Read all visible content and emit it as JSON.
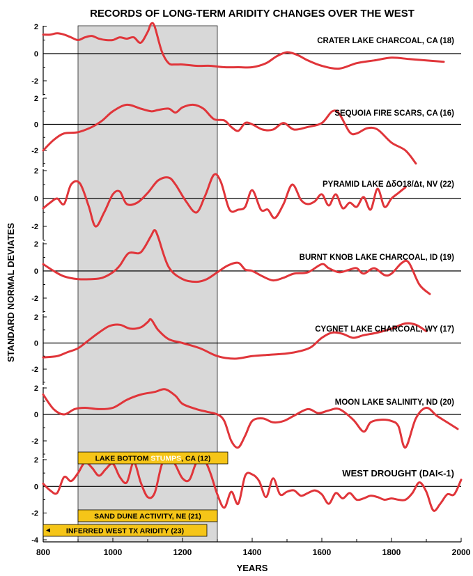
{
  "chart_data": {
    "type": "line",
    "title": "RECORDS OF LONG-TERM ARIDITY CHANGES OVER THE WEST",
    "xlabel": "YEARS",
    "ylabel": "STANDARD NORMAL DEVIATES",
    "xlim": [
      800,
      2000
    ],
    "x_ticks": [
      800,
      1000,
      1200,
      1400,
      1600,
      1800,
      2000
    ],
    "highlight_period": [
      900,
      1300
    ],
    "line_color": "#e0353a",
    "shade_color": "#d8d8d8",
    "bar_color": "#f5c518",
    "panels": [
      {
        "name": "CRATER LAKE CHARCOAL, CA (18)",
        "ylim": [
          -3,
          3
        ],
        "y_ticks": [
          2,
          0,
          -2
        ],
        "tick_labels": [
          "2",
          "0",
          "-2"
        ],
        "x": [
          800,
          820,
          840,
          860,
          880,
          900,
          920,
          940,
          960,
          980,
          1000,
          1020,
          1040,
          1060,
          1080,
          1100,
          1110,
          1120,
          1140,
          1160,
          1180,
          1200,
          1240,
          1280,
          1320,
          1360,
          1400,
          1440,
          1470,
          1500,
          1530,
          1560,
          1600,
          1650,
          1700,
          1750,
          1800,
          1850,
          1900,
          1950
        ],
        "y": [
          1.4,
          1.4,
          1.5,
          1.4,
          1.2,
          1.0,
          1.2,
          1.3,
          1.1,
          1.0,
          1.0,
          1.2,
          1.1,
          1.2,
          0.8,
          1.6,
          2.2,
          2.0,
          0.2,
          -0.7,
          -0.8,
          -0.8,
          -0.9,
          -0.9,
          -1.0,
          -1.0,
          -1.0,
          -0.7,
          -0.2,
          0.1,
          -0.1,
          -0.5,
          -0.9,
          -1.1,
          -0.7,
          -0.5,
          -0.3,
          -0.4,
          -0.5,
          -0.6
        ]
      },
      {
        "name": "SEQUOIA FIRE SCARS, CA (16)",
        "ylim": [
          -3,
          3
        ],
        "y_ticks": [
          2,
          0,
          -2
        ],
        "tick_labels": [
          "2",
          "0",
          "-2"
        ],
        "x": [
          800,
          830,
          860,
          900,
          940,
          970,
          1000,
          1040,
          1080,
          1110,
          1130,
          1160,
          1180,
          1200,
          1230,
          1260,
          1290,
          1320,
          1340,
          1360,
          1380,
          1400,
          1430,
          1460,
          1490,
          1520,
          1560,
          1600,
          1630,
          1650,
          1680,
          1700,
          1730,
          1760,
          1800,
          1840,
          1870
        ],
        "y": [
          -2.0,
          -1.2,
          -0.7,
          -0.6,
          -0.2,
          0.3,
          1.0,
          1.5,
          1.2,
          1.0,
          1.1,
          1.2,
          0.9,
          1.3,
          1.5,
          1.2,
          0.4,
          0.3,
          -0.2,
          -0.5,
          0.1,
          0.0,
          -0.4,
          -0.4,
          0.1,
          -0.4,
          -0.2,
          0.1,
          1.0,
          0.8,
          -0.6,
          -0.7,
          -0.3,
          -0.4,
          -1.4,
          -2.0,
          -3.0
        ]
      },
      {
        "name": "PYRAMID LAKE ΔδO18/Δt, NV (22)",
        "ylim": [
          -3,
          3
        ],
        "y_ticks": [
          2,
          0,
          -2
        ],
        "tick_labels": [
          "2",
          "0",
          "-2"
        ],
        "x": [
          800,
          820,
          840,
          860,
          880,
          905,
          930,
          950,
          975,
          1000,
          1020,
          1040,
          1070,
          1100,
          1130,
          1160,
          1180,
          1210,
          1240,
          1265,
          1290,
          1310,
          1335,
          1360,
          1380,
          1400,
          1425,
          1445,
          1465,
          1490,
          1515,
          1540,
          1560,
          1580,
          1600,
          1620,
          1640,
          1660,
          1680,
          1700,
          1720,
          1740,
          1760,
          1780,
          1800,
          1820,
          1840
        ],
        "y": [
          -0.7,
          -0.3,
          0.0,
          -0.4,
          1.0,
          1.1,
          -0.5,
          -2.0,
          -1.0,
          0.3,
          0.5,
          -0.4,
          -0.3,
          0.4,
          1.3,
          1.5,
          1.0,
          -0.2,
          -1.0,
          0.2,
          1.7,
          1.2,
          -0.8,
          -0.8,
          -0.6,
          0.6,
          -0.8,
          -0.8,
          -1.4,
          -0.4,
          1.0,
          -0.1,
          -0.4,
          -0.2,
          0.3,
          -0.5,
          0.3,
          -0.7,
          -0.3,
          -0.6,
          0.1,
          -0.8,
          0.7,
          -0.6,
          0.0,
          0.4,
          0.8
        ]
      },
      {
        "name": "BURNT KNOB LAKE CHARCOAL, ID (19)",
        "ylim": [
          -3,
          3
        ],
        "y_ticks": [
          2,
          0,
          -2
        ],
        "tick_labels": [
          "2",
          "0",
          "-2"
        ],
        "x": [
          800,
          830,
          860,
          900,
          940,
          970,
          1000,
          1020,
          1045,
          1075,
          1090,
          1110,
          1120,
          1130,
          1160,
          1200,
          1240,
          1270,
          1300,
          1330,
          1360,
          1380,
          1400,
          1430,
          1460,
          1490,
          1520,
          1560,
          1600,
          1620,
          1650,
          1680,
          1700,
          1720,
          1750,
          1780,
          1800,
          1830,
          1850,
          1880,
          1910
        ],
        "y": [
          0.5,
          0.0,
          -0.4,
          -0.6,
          -0.6,
          -0.5,
          -0.1,
          0.4,
          1.3,
          1.3,
          1.7,
          2.6,
          3.0,
          2.5,
          0.3,
          -0.6,
          -0.8,
          -0.6,
          -0.1,
          0.4,
          0.6,
          0.1,
          0.0,
          -0.4,
          -0.7,
          -0.5,
          -0.2,
          -0.1,
          0.5,
          0.2,
          -0.1,
          0.1,
          0.2,
          -0.2,
          0.2,
          -0.3,
          -0.2,
          0.6,
          0.6,
          -1.0,
          -1.7
        ]
      },
      {
        "name": "CYGNET LAKE CHARCOAL, WY (17)",
        "ylim": [
          -3,
          3
        ],
        "y_ticks": [
          2,
          0,
          -2
        ],
        "tick_labels": [
          "2",
          "0",
          "-2"
        ],
        "x": [
          800,
          840,
          870,
          900,
          930,
          960,
          990,
          1020,
          1050,
          1080,
          1100,
          1110,
          1130,
          1160,
          1200,
          1250,
          1300,
          1350,
          1400,
          1450,
          1500,
          1540,
          1570,
          1600,
          1630,
          1660,
          1690,
          1720,
          1760,
          1800,
          1840,
          1870,
          1900
        ],
        "y": [
          -1.1,
          -1.0,
          -0.7,
          -0.4,
          0.2,
          0.8,
          1.3,
          1.4,
          1.1,
          1.2,
          1.6,
          1.8,
          1.0,
          0.3,
          0.0,
          -0.4,
          -1.0,
          -1.2,
          -1.0,
          -0.9,
          -0.8,
          -0.6,
          -0.3,
          0.4,
          0.8,
          0.7,
          0.4,
          0.6,
          0.8,
          1.1,
          1.5,
          1.4,
          0.9
        ]
      },
      {
        "name": "MOON LAKE SALINITY, ND (20)",
        "ylim": [
          -3,
          3
        ],
        "y_ticks": [
          2,
          0,
          -2
        ],
        "tick_labels": [
          "2",
          "0",
          "-2"
        ],
        "x": [
          800,
          830,
          860,
          890,
          920,
          960,
          1000,
          1040,
          1080,
          1120,
          1150,
          1180,
          1200,
          1240,
          1270,
          1300,
          1320,
          1340,
          1360,
          1380,
          1400,
          1430,
          1460,
          1490,
          1520,
          1560,
          1590,
          1620,
          1650,
          1690,
          1720,
          1740,
          1770,
          1800,
          1820,
          1840,
          1870,
          1900,
          1930,
          1960,
          1990
        ],
        "y": [
          1.5,
          0.4,
          0.0,
          0.4,
          0.5,
          0.4,
          0.5,
          1.1,
          1.5,
          1.7,
          1.9,
          1.4,
          0.8,
          0.4,
          0.2,
          0.0,
          -0.5,
          -2.0,
          -2.5,
          -1.6,
          -0.5,
          -0.3,
          -0.6,
          -0.5,
          -0.1,
          0.4,
          0.1,
          0.3,
          0.4,
          -0.4,
          -1.3,
          -0.6,
          -0.4,
          -0.5,
          -0.9,
          -2.5,
          -0.3,
          0.5,
          -0.1,
          -0.6,
          -1.1
        ]
      },
      {
        "name": "WEST DROUGHT (DAI<-1)",
        "ylim": [
          -4,
          3
        ],
        "y_ticks": [
          2,
          0,
          -2,
          -4
        ],
        "tick_labels": [
          "2",
          "0",
          "-2",
          "-4"
        ],
        "x": [
          800,
          820,
          840,
          860,
          880,
          900,
          920,
          940,
          960,
          980,
          1000,
          1020,
          1040,
          1060,
          1080,
          1100,
          1120,
          1140,
          1160,
          1180,
          1200,
          1220,
          1240,
          1260,
          1280,
          1300,
          1320,
          1340,
          1360,
          1380,
          1400,
          1420,
          1440,
          1460,
          1480,
          1500,
          1520,
          1540,
          1560,
          1580,
          1600,
          1620,
          1640,
          1660,
          1680,
          1700,
          1720,
          1740,
          1760,
          1780,
          1800,
          1820,
          1840,
          1860,
          1880,
          1900,
          1920,
          1940,
          1960,
          1980,
          2000
        ],
        "y": [
          0.2,
          -0.3,
          -0.5,
          0.7,
          0.4,
          1.0,
          1.8,
          1.4,
          0.8,
          1.3,
          1.7,
          0.7,
          0.3,
          1.8,
          0.3,
          -0.8,
          -0.5,
          1.6,
          2.5,
          1.6,
          0.6,
          0.5,
          1.8,
          2.1,
          1.0,
          -0.6,
          -1.6,
          -0.4,
          -1.3,
          0.8,
          0.9,
          0.4,
          -0.8,
          0.6,
          -0.6,
          -0.4,
          -0.3,
          -0.7,
          -0.5,
          -0.3,
          -0.6,
          -1.3,
          -0.5,
          -0.9,
          -0.5,
          -1.0,
          -0.9,
          -0.7,
          -0.8,
          -1.0,
          -0.9,
          -1.0,
          -1.0,
          -0.5,
          0.3,
          -0.4,
          -1.8,
          -1.3,
          -0.6,
          -0.6,
          0.5
        ]
      }
    ],
    "period_bars": [
      {
        "label_dark": "LAKE BOTTOM ",
        "label_light": "STUMPS",
        "label_tail": ", CA (12)",
        "start": 900,
        "end": 1330
      },
      {
        "label_dark": "SAND DUNE ACTIVITY, NE (21)",
        "label_light": "",
        "label_tail": "",
        "start": 900,
        "end": 1300
      },
      {
        "label_dark": "INFERRED WEST TX ARIDITY (23)",
        "label_light": "",
        "label_tail": "",
        "start": 800,
        "end": 1270
      }
    ]
  }
}
